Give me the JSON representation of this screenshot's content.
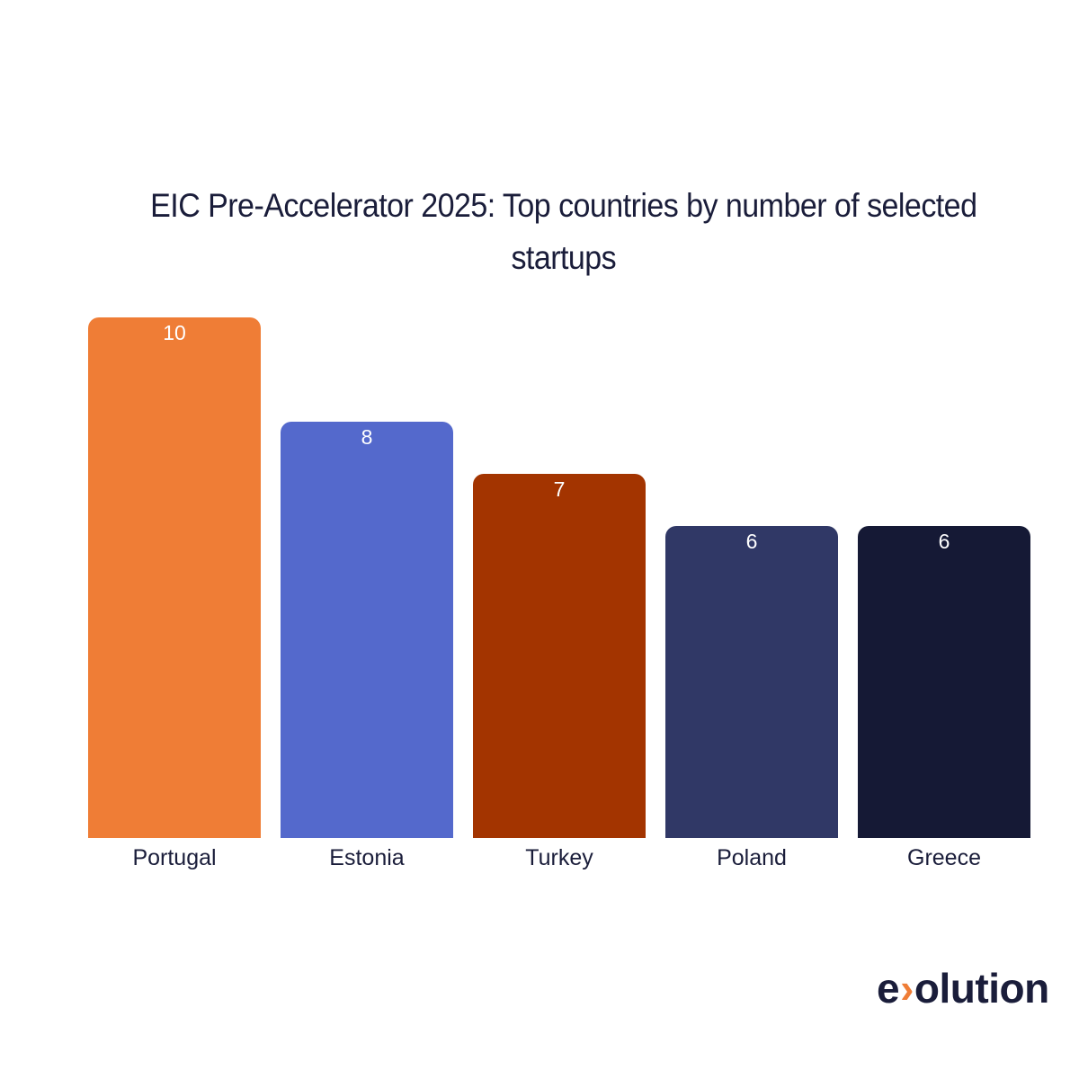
{
  "chart_data": {
    "type": "bar",
    "title": "EIC Pre-Accelerator 2025: Top countries by number of selected startups",
    "title_lines": [
      "EIC Pre-Accelerator 2025: Top countries by number of selected",
      "startups"
    ],
    "categories": [
      "Portugal",
      "Estonia",
      "Turkey",
      "Poland",
      "Greece"
    ],
    "values": [
      10,
      8,
      7,
      6,
      6
    ],
    "colors": [
      "#ef7d36",
      "#5469cc",
      "#a33400",
      "#303866",
      "#151935"
    ],
    "xlabel": "",
    "ylabel": "",
    "ylim": [
      0,
      10
    ],
    "grid": false,
    "legend": "none",
    "data_labels": true
  },
  "logo": {
    "left": "e",
    "chevron": "›",
    "right": "olution"
  }
}
